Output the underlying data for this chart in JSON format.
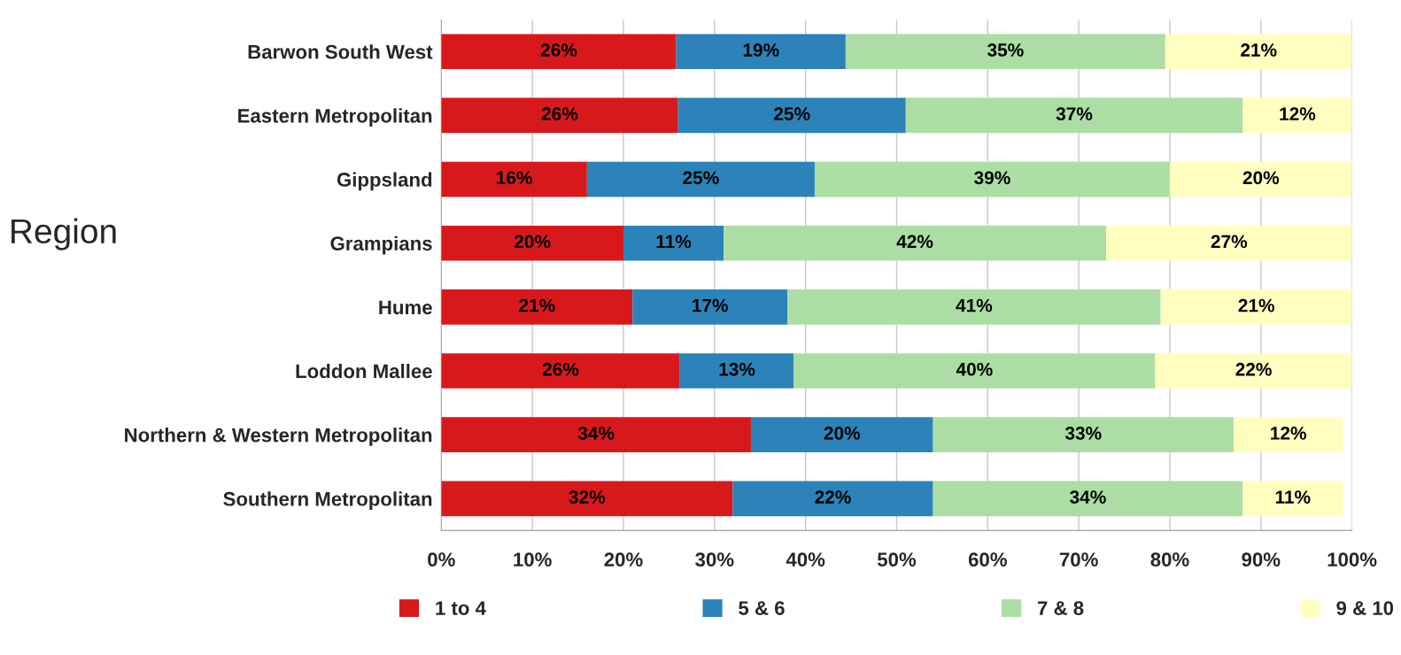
{
  "chart_data": {
    "type": "bar",
    "orientation": "horizontal",
    "stacked": true,
    "ylabel": "Region",
    "categories": [
      "Barwon South West",
      "Eastern Metropolitan",
      "Gippsland",
      "Grampians",
      "Hume",
      "Loddon Mallee",
      "Northern & Western Metropolitan",
      "Southern Metropolitan"
    ],
    "series": [
      {
        "name": "1 to 4",
        "color": "#d7191c",
        "values": [
          25.8,
          26,
          16,
          20,
          21,
          26.2,
          34,
          32
        ],
        "value_labels": [
          "26%",
          "26%",
          "16%",
          "20%",
          "21%",
          "26%",
          "34%",
          "32%"
        ]
      },
      {
        "name": "5 & 6",
        "color": "#2b83ba",
        "values": [
          18.6,
          25,
          25,
          11,
          17,
          12.5,
          20,
          22
        ],
        "value_labels": [
          "19%",
          "25%",
          "25%",
          "11%",
          "17%",
          "13%",
          "20%",
          "22%"
        ]
      },
      {
        "name": "7 & 8",
        "color": "#abdda4",
        "values": [
          35.1,
          37,
          39,
          42,
          41,
          39.7,
          33,
          34
        ],
        "value_labels": [
          "35%",
          "37%",
          "39%",
          "42%",
          "41%",
          "40%",
          "33%",
          "34%"
        ]
      },
      {
        "name": "9 & 10",
        "color": "#ffffbf",
        "values": [
          20.5,
          12,
          20,
          27,
          21,
          21.6,
          12,
          11
        ],
        "value_labels": [
          "21%",
          "12%",
          "20%",
          "27%",
          "21%",
          "22%",
          "12%",
          "11%"
        ]
      }
    ],
    "xlim": [
      0,
      100
    ],
    "xticks": [
      {
        "value": 0,
        "label": "0%"
      },
      {
        "value": 10,
        "label": "10%"
      },
      {
        "value": 20,
        "label": "20%"
      },
      {
        "value": 30,
        "label": "30%"
      },
      {
        "value": 40,
        "label": "40%"
      },
      {
        "value": 50,
        "label": "50%"
      },
      {
        "value": 60,
        "label": "60%"
      },
      {
        "value": 70,
        "label": "70%"
      },
      {
        "value": 80,
        "label": "80%"
      },
      {
        "value": 90,
        "label": "90%"
      },
      {
        "value": 100,
        "label": "100%"
      }
    ],
    "grid": "x",
    "legend": "bottom"
  }
}
